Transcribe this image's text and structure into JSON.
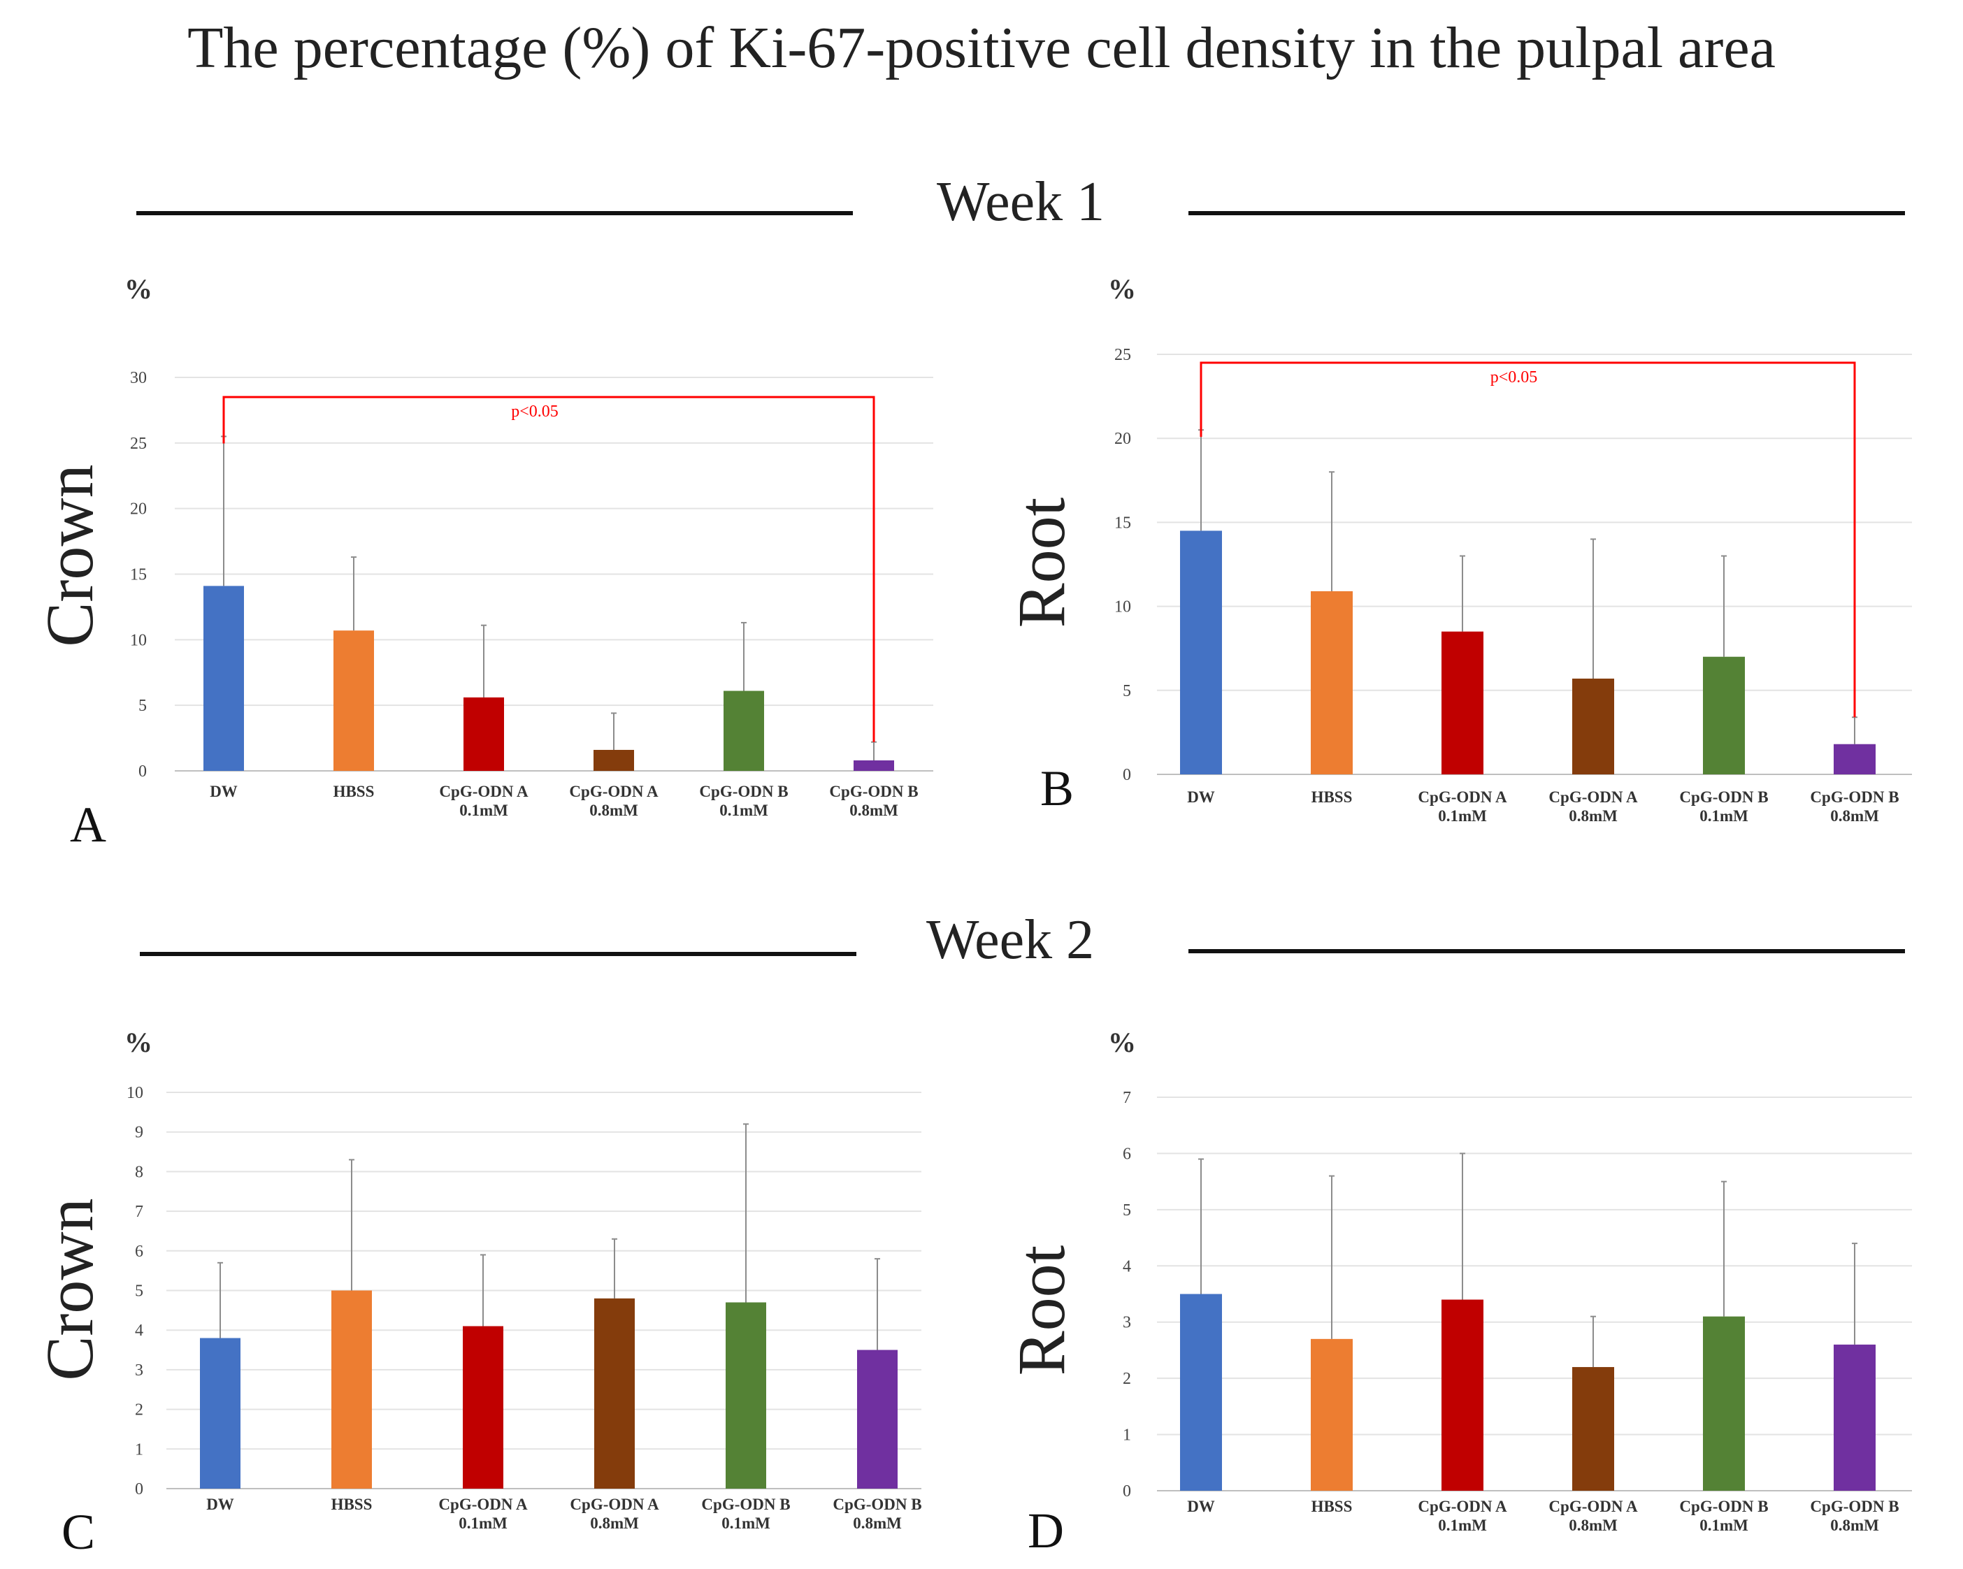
{
  "page": {
    "title": "The percentage (%) of Ki-67-positive cell density in the pulpal area",
    "week1_label": "Week 1",
    "week2_label": "Week 2"
  },
  "colors": {
    "DW": "#4472C4",
    "HBSS": "#ED7D31",
    "CpG-ODN A 0.1mM": "#C00000",
    "CpG-ODN A 0.8mM": "#843C0C",
    "CpG-ODN B 0.1mM": "#548235",
    "CpG-ODN B 0.8mM": "#7030A0",
    "significance": "#FF0000"
  },
  "chart_data": [
    {
      "panel": "A",
      "type": "bar",
      "region": "Crown",
      "week": "Week 1",
      "unit": "%",
      "categories": [
        [
          "DW"
        ],
        [
          "HBSS"
        ],
        [
          "CpG-ODN A",
          "0.1mM"
        ],
        [
          "CpG-ODN A",
          "0.8mM"
        ],
        [
          "CpG-ODN B",
          "0.1mM"
        ],
        [
          "CpG-ODN B",
          "0.8mM"
        ]
      ],
      "values": [
        14.1,
        10.7,
        5.6,
        1.6,
        6.1,
        0.8
      ],
      "errors": [
        11.4,
        5.6,
        5.5,
        2.8,
        5.2,
        1.4
      ],
      "ylim": [
        0,
        30
      ],
      "yticks": [
        0,
        5,
        10,
        15,
        20,
        25,
        30
      ],
      "significance": {
        "label": "p<0.05",
        "from": 0,
        "to": 5,
        "y": 28.5
      }
    },
    {
      "panel": "B",
      "type": "bar",
      "region": "Root",
      "week": "Week 1",
      "unit": "%",
      "categories": [
        [
          "DW"
        ],
        [
          "HBSS"
        ],
        [
          "CpG-ODN A",
          "0.1mM"
        ],
        [
          "CpG-ODN A",
          "0.8mM"
        ],
        [
          "CpG-ODN B",
          "0.1mM"
        ],
        [
          "CpG-ODN B",
          "0.8mM"
        ]
      ],
      "values": [
        14.5,
        10.9,
        8.5,
        5.7,
        7.0,
        1.8
      ],
      "errors": [
        6.0,
        7.1,
        4.5,
        8.3,
        6.0,
        1.6
      ],
      "ylim": [
        0,
        25
      ],
      "yticks": [
        0,
        5,
        10,
        15,
        20,
        25
      ],
      "significance": {
        "label": "p<0.05",
        "from": 0,
        "to": 5,
        "y": 24.5
      }
    },
    {
      "panel": "C",
      "type": "bar",
      "region": "Crown",
      "week": "Week 2",
      "unit": "%",
      "categories": [
        [
          "DW"
        ],
        [
          "HBSS"
        ],
        [
          "CpG-ODN A",
          "0.1mM"
        ],
        [
          "CpG-ODN A",
          "0.8mM"
        ],
        [
          "CpG-ODN B",
          "0.1mM"
        ],
        [
          "CpG-ODN B",
          "0.8mM"
        ]
      ],
      "values": [
        3.8,
        5.0,
        4.1,
        4.8,
        4.7,
        3.5
      ],
      "errors": [
        1.9,
        3.3,
        1.8,
        1.5,
        4.5,
        2.3
      ],
      "ylim": [
        0,
        10
      ],
      "yticks": [
        0,
        1,
        2,
        3,
        4,
        5,
        6,
        7,
        8,
        9,
        10
      ]
    },
    {
      "panel": "D",
      "type": "bar",
      "region": "Root",
      "week": "Week 2",
      "unit": "%",
      "categories": [
        [
          "DW"
        ],
        [
          "HBSS"
        ],
        [
          "CpG-ODN A",
          "0.1mM"
        ],
        [
          "CpG-ODN A",
          "0.8mM"
        ],
        [
          "CpG-ODN B",
          "0.1mM"
        ],
        [
          "CpG-ODN B",
          "0.8mM"
        ]
      ],
      "values": [
        3.5,
        2.7,
        3.4,
        2.2,
        3.1,
        2.6
      ],
      "errors": [
        2.4,
        2.9,
        2.6,
        0.9,
        2.4,
        1.8
      ],
      "ylim": [
        0,
        7
      ],
      "yticks": [
        0,
        1,
        2,
        3,
        4,
        5,
        6,
        7
      ]
    }
  ]
}
